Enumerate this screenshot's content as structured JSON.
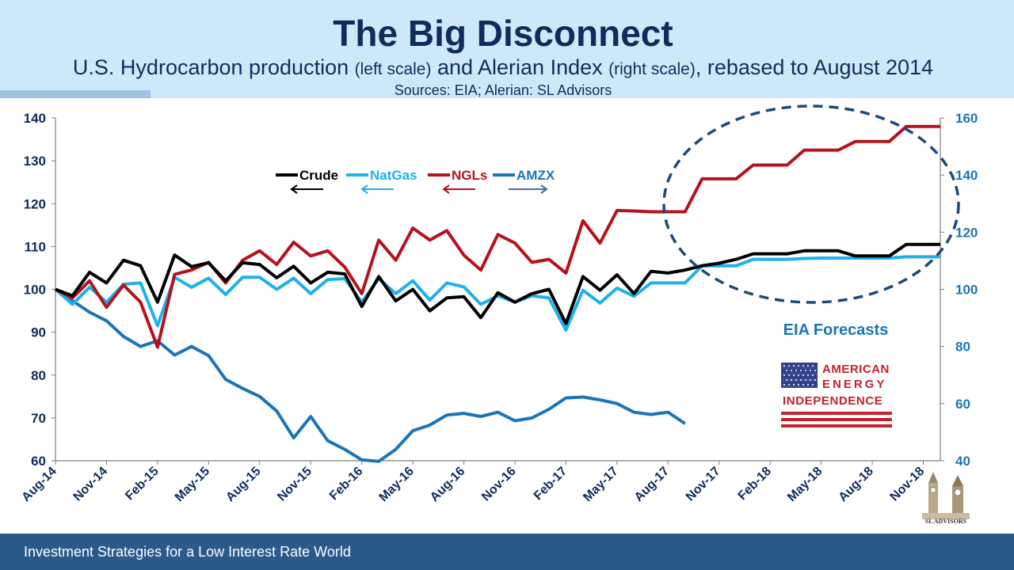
{
  "header": {
    "title": "The Big Disconnect",
    "subtitle_main_1": "U.S. Hydrocarbon production ",
    "subtitle_small_1": "(left scale)",
    "subtitle_main_2": " and Alerian Index ",
    "subtitle_small_2": "(right scale)",
    "subtitle_main_3": ", rebased to August 2014",
    "sources": "Sources: EIA; Alerian: SL Advisors"
  },
  "footer": {
    "text": "Investment Strategies for a Low Interest Rate World"
  },
  "logo": {
    "line1": "AMERICAN",
    "line2": "ENERGY",
    "line3": "INDEPENDENCE",
    "sl_caption": "SL ADVISORS"
  },
  "colors": {
    "navy": "#0f2c5c",
    "crude": "#000000",
    "natgas": "#1eb1ea",
    "ngls": "#b5121b",
    "amzx": "#1a75b8",
    "annotation": "#1a75b8",
    "flag_red": "#c8202c"
  },
  "chart_data": {
    "type": "line",
    "x_tick_labels": [
      "Aug-14",
      "Nov-14",
      "Feb-15",
      "May-15",
      "Aug-15",
      "Nov-15",
      "Feb-16",
      "May-16",
      "Aug-16",
      "Nov-16",
      "Feb-17",
      "May-17",
      "Aug-17",
      "Nov-17",
      "Feb-18",
      "May-18",
      "Aug-18",
      "Nov-18"
    ],
    "x_start": "Aug-14",
    "x_end": "Jan-19",
    "y_left": {
      "min": 60,
      "max": 140,
      "step": 10,
      "ticks": [
        "60",
        "70",
        "80",
        "90",
        "100",
        "110",
        "120",
        "130",
        "140"
      ]
    },
    "y_right": {
      "min": 40,
      "max": 160,
      "step": 20,
      "ticks": [
        "40",
        "60",
        "80",
        "100",
        "120",
        "140",
        "160"
      ]
    },
    "legend": [
      {
        "name": "Crude",
        "arrow": "left"
      },
      {
        "name": "NatGas",
        "arrow": "left"
      },
      {
        "name": "NGLs",
        "arrow": "left"
      },
      {
        "name": "AMZX",
        "arrow": "right"
      }
    ],
    "annotation": "EIA Forecasts",
    "forecast_region": "Nov-17 to Nov-18 (dashed ellipse)",
    "series": [
      {
        "name": "Crude",
        "axis": "left",
        "values": [
          100,
          98.5,
          104,
          101.5,
          106.8,
          105.5,
          97,
          108,
          105.3,
          106.2,
          102,
          106.2,
          105.8,
          102.7,
          105.4,
          101.5,
          104,
          103.6,
          96,
          103,
          97.3,
          100,
          95,
          98,
          98.3,
          93.4,
          99.2,
          97,
          99,
          100,
          92,
          103,
          99.8,
          103.4,
          99,
          104.2,
          103.8,
          104.5,
          105.5,
          106.1,
          107,
          108.3,
          108.3,
          108.3,
          109,
          109,
          109,
          107.8,
          107.8,
          107.8,
          110.5,
          110.5,
          110.5
        ]
      },
      {
        "name": "NatGas",
        "axis": "left",
        "values": [
          100,
          96.5,
          100.5,
          97,
          101.2,
          101.5,
          91.5,
          102.8,
          100.5,
          102.6,
          98.8,
          102.8,
          102.8,
          100,
          102.6,
          99,
          102.3,
          102.5,
          97,
          102.5,
          99,
          102,
          97.5,
          101.5,
          100.6,
          96.5,
          98.5,
          97,
          98.5,
          98,
          90.5,
          99.8,
          96.8,
          100.3,
          98.4,
          101.5,
          101.5,
          101.5,
          105.5,
          105.5,
          105.5,
          107,
          107,
          107,
          107.2,
          107.3,
          107.3,
          107.3,
          107.3,
          107.3,
          107.6,
          107.6,
          107.6
        ]
      },
      {
        "name": "NGLs",
        "axis": "left",
        "values": [
          100,
          98,
          102,
          95.8,
          101,
          97,
          86.5,
          103.5,
          104.5,
          106.3,
          101.5,
          106.8,
          109,
          105.8,
          111,
          107.8,
          109,
          105.2,
          99,
          111.5,
          106.8,
          114.3,
          111.5,
          113.7,
          108,
          104.5,
          112.8,
          110.8,
          106.3,
          107,
          103.8,
          116,
          110.8,
          118.4,
          118.3,
          118.1,
          118.1,
          118.1,
          125.8,
          125.8,
          125.8,
          129,
          129,
          129,
          132.5,
          132.5,
          132.5,
          134.5,
          134.5,
          134.5,
          138,
          138,
          138
        ]
      },
      {
        "name": "AMZX",
        "axis": "right",
        "values": [
          100,
          96,
          92,
          89,
          83.5,
          80,
          82,
          77,
          80,
          76.8,
          68.5,
          65.3,
          62.5,
          57.4,
          48,
          55.5,
          47,
          44,
          40.3,
          39.8,
          44,
          50.5,
          52.5,
          56,
          56.6,
          55.5,
          57,
          54,
          55,
          58,
          62,
          62.3,
          61.3,
          60,
          57,
          56.2,
          57,
          53
        ]
      }
    ]
  }
}
